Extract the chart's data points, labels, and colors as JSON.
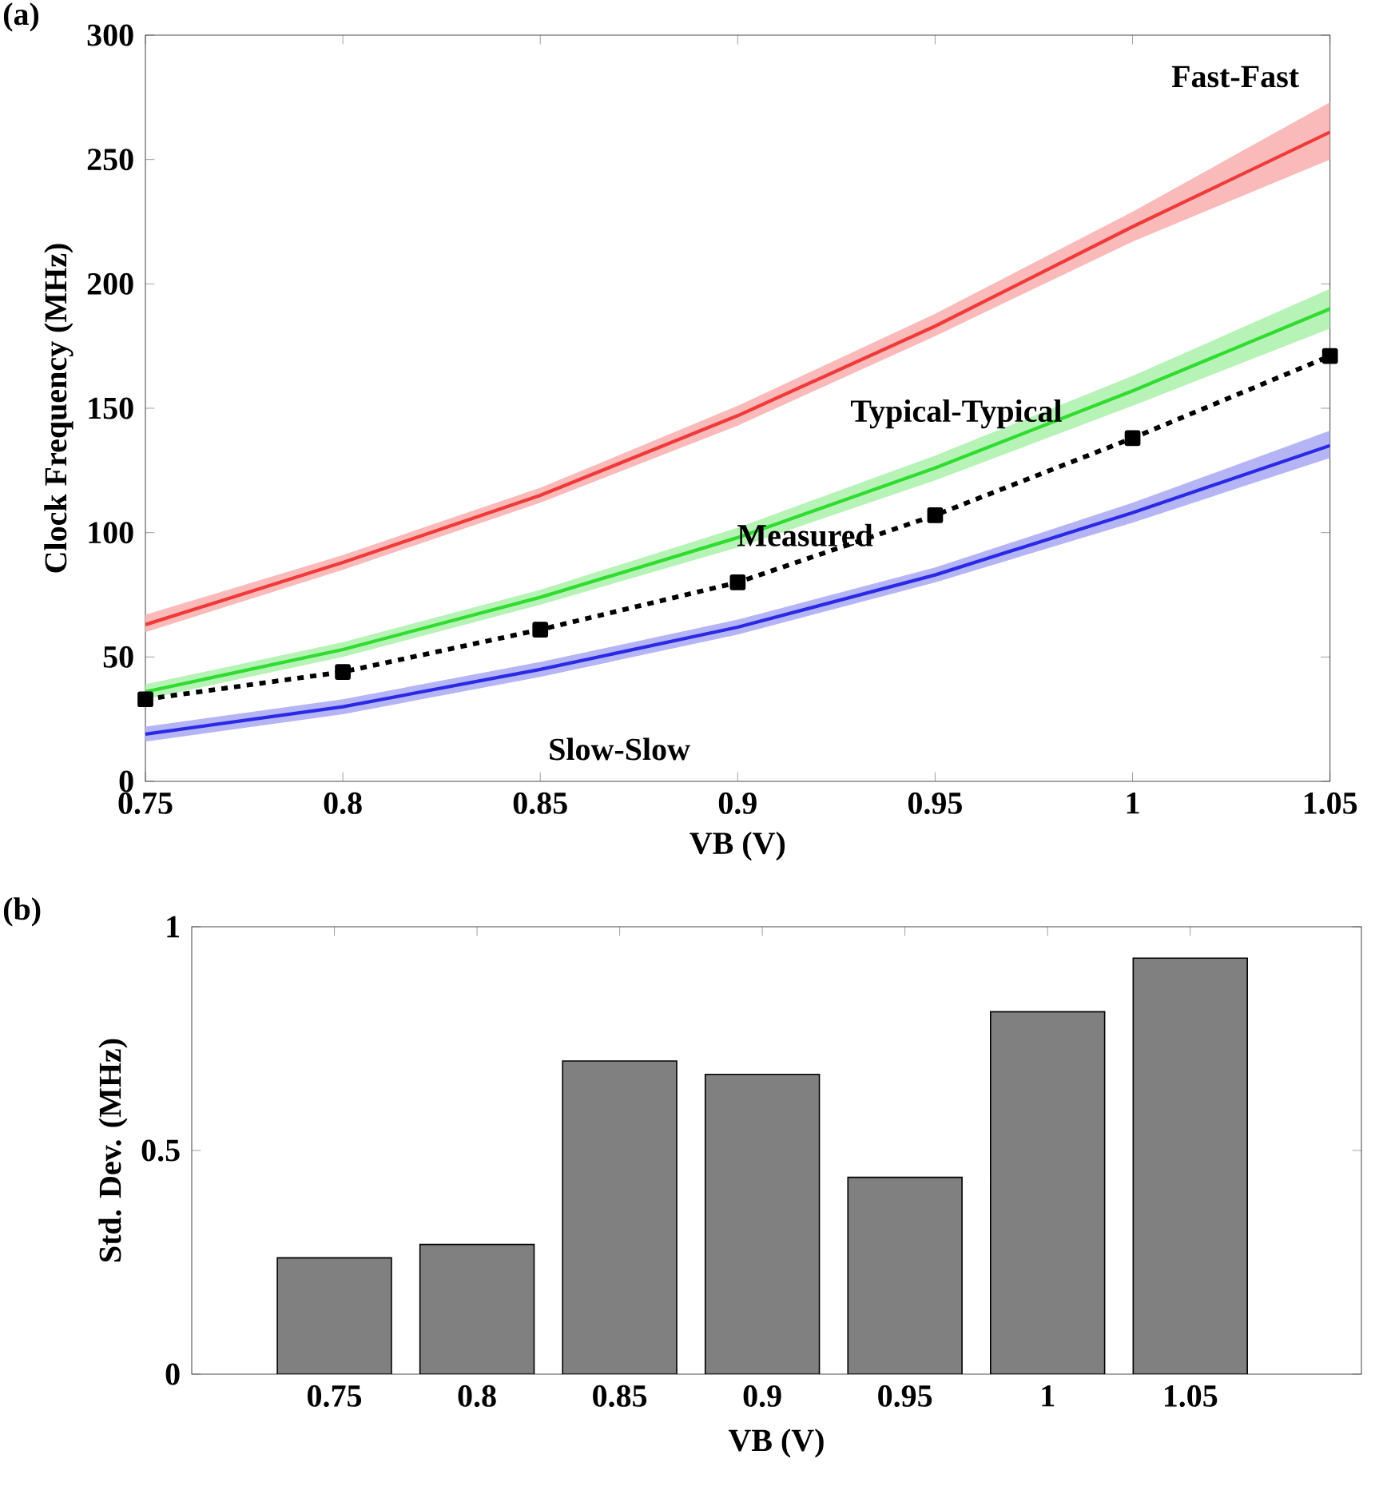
{
  "chart_data": [
    {
      "type": "line",
      "xlabel": "VB (V)",
      "ylabel": "Clock Frequency (MHz)",
      "annotations": [
        "(a)"
      ],
      "x": [
        0.75,
        0.8,
        0.85,
        0.9,
        0.95,
        1,
        1.05
      ],
      "series": [
        {
          "name": "Fast-Fast",
          "color": "#f03a3a",
          "values": [
            63,
            88,
            115,
            147,
            183,
            223,
            261
          ],
          "lower": [
            60,
            85,
            112,
            143,
            179,
            217,
            250
          ],
          "upper": [
            67,
            91,
            118,
            151,
            188,
            229,
            273
          ]
        },
        {
          "name": "Typical-Typical",
          "color": "#30dc30",
          "values": [
            36,
            53,
            74,
            98,
            126,
            157,
            190
          ],
          "lower": [
            33,
            50,
            71,
            94,
            121,
            151,
            182
          ],
          "upper": [
            39,
            56,
            77,
            102,
            131,
            163,
            198
          ]
        },
        {
          "name": "Slow-Slow",
          "color": "#2a2ae6",
          "values": [
            19,
            30,
            45,
            62,
            83,
            108,
            135
          ],
          "lower": [
            16,
            27,
            42,
            59,
            80,
            104,
            130
          ],
          "upper": [
            22,
            33,
            48,
            65,
            86,
            112,
            141
          ]
        },
        {
          "name": "Measured",
          "color": "#000000",
          "values": [
            33,
            44,
            61,
            80,
            107,
            138,
            171
          ],
          "marker": "square",
          "line_style": "dotted"
        }
      ],
      "xlim": [
        0.75,
        1.05
      ],
      "ylim": [
        0,
        300
      ],
      "xticks": [
        0.75,
        0.8,
        0.85,
        0.9,
        0.95,
        1,
        1.05
      ],
      "yticks": [
        0,
        50,
        100,
        150,
        200,
        250,
        300
      ]
    },
    {
      "type": "bar",
      "xlabel": "VB (V)",
      "ylabel": "Std. Dev. (MHz)",
      "annotations": [
        "(b)"
      ],
      "categories": [
        "0.75",
        "0.8",
        "0.85",
        "0.9",
        "0.95",
        "1",
        "1.05"
      ],
      "values": [
        0.26,
        0.29,
        0.7,
        0.67,
        0.44,
        0.81,
        0.93
      ],
      "color": "#808080",
      "ylim": [
        0,
        1
      ],
      "yticks": [
        0,
        0.5,
        1
      ]
    }
  ]
}
